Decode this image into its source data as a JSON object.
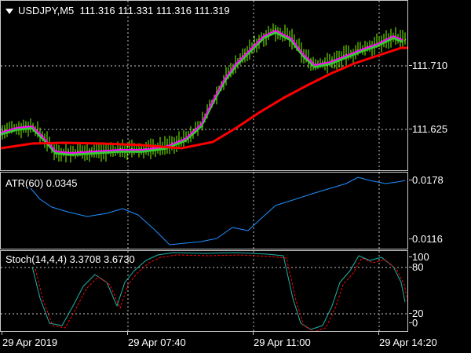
{
  "main": {
    "symbol": "USDJPY,M5",
    "ohlc": "111.316 111.331 111.316 111.319",
    "price_ticks": [
      "111.710",
      "111.625"
    ]
  },
  "atr": {
    "label": "ATR(60) 0.0345",
    "ticks": [
      "0.0178",
      "0.0116"
    ]
  },
  "stoch": {
    "label": "Stoch(14,4,4) 3.3708 3.6730",
    "ticks": [
      "100",
      "80",
      "20",
      "0"
    ]
  },
  "time_axis": [
    "29 Apr 2019",
    "29 Apr 07:40",
    "29 Apr 11:00",
    "29 Apr 14:20"
  ],
  "colors": {
    "background": "#000000",
    "candles": "#7cfc00",
    "ma_fast": "#ff00ff",
    "ma_mid": "#32cd32",
    "ma_slow": "#ff0000",
    "atr_line": "#1e90ff",
    "stoch_main": "#20b2aa",
    "stoch_signal": "#ff0000",
    "grid": "#c8c8c8"
  }
}
